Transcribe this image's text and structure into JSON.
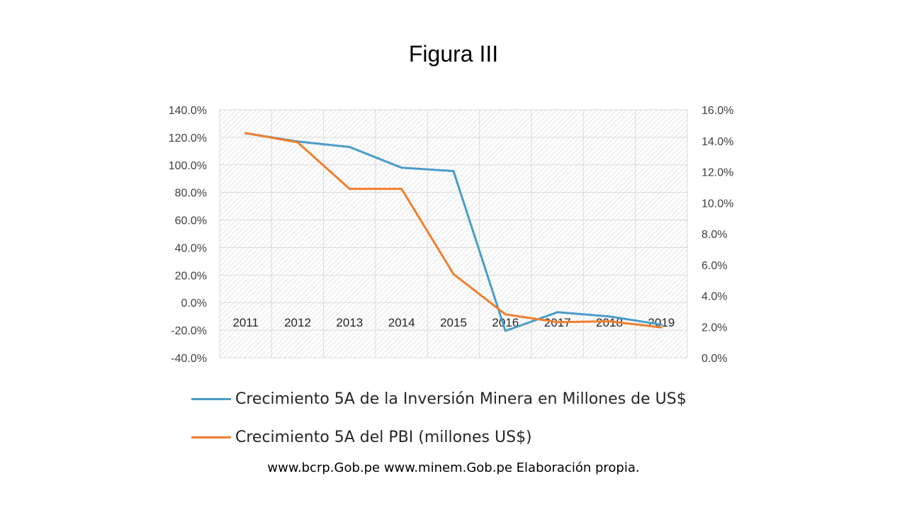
{
  "page": {
    "title": "Figura III",
    "source": "www.bcrp.Gob.pe www.minem.Gob.pe Elaboración propia."
  },
  "chart_data": {
    "type": "line",
    "categories": [
      "2011",
      "2012",
      "2013",
      "2014",
      "2015",
      "2016",
      "2017",
      "2018",
      "2019"
    ],
    "series": [
      {
        "name": "Crecimiento 5A de la Inversión Minera en Millones de US$",
        "axis": "left",
        "color": "#4A9CC8",
        "values": [
          123,
          117,
          113,
          98,
          95.5,
          -20.5,
          -7,
          -10,
          -16
        ]
      },
      {
        "name": "Crecimiento 5A del PBI (millones US$)",
        "axis": "right",
        "color": "#F07E2E",
        "values": [
          14.5,
          13.9,
          10.9,
          10.9,
          5.4,
          2.8,
          2.3,
          2.35,
          1.95
        ]
      }
    ],
    "left_axis": {
      "min": -40,
      "max": 140,
      "ticks": [
        "140.0%",
        "120.0%",
        "100.0%",
        "80.0%",
        "60.0%",
        "40.0%",
        "20.0%",
        "0.0%",
        "-20.0%",
        "-40.0%"
      ]
    },
    "right_axis": {
      "min": 0,
      "max": 16,
      "ticks": [
        "16.0%",
        "14.0%",
        "12.0%",
        "10.0%",
        "8.0%",
        "6.0%",
        "4.0%",
        "2.0%",
        "0.0%"
      ]
    },
    "grid": true,
    "plot_fill": "hatched",
    "legend_position": "bottom"
  }
}
